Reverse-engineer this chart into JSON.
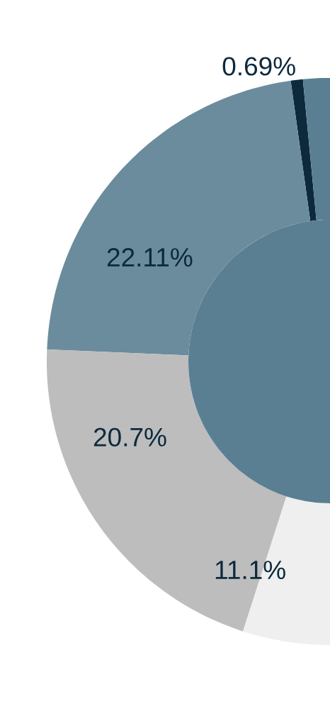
{
  "chart_data": {
    "type": "donut",
    "categories": [
      null,
      null,
      null,
      null,
      null
    ],
    "values": [
      0.69,
      22.11,
      20.7,
      11.1,
      45.4
    ],
    "value_labels": [
      "0.69%",
      "22.11%",
      "20.7%",
      "11.1%",
      null
    ],
    "colors": [
      "#0d2a3d",
      "#6b8c9c",
      "#bdbdbd",
      "#efefef",
      "#5a7f93"
    ]
  }
}
